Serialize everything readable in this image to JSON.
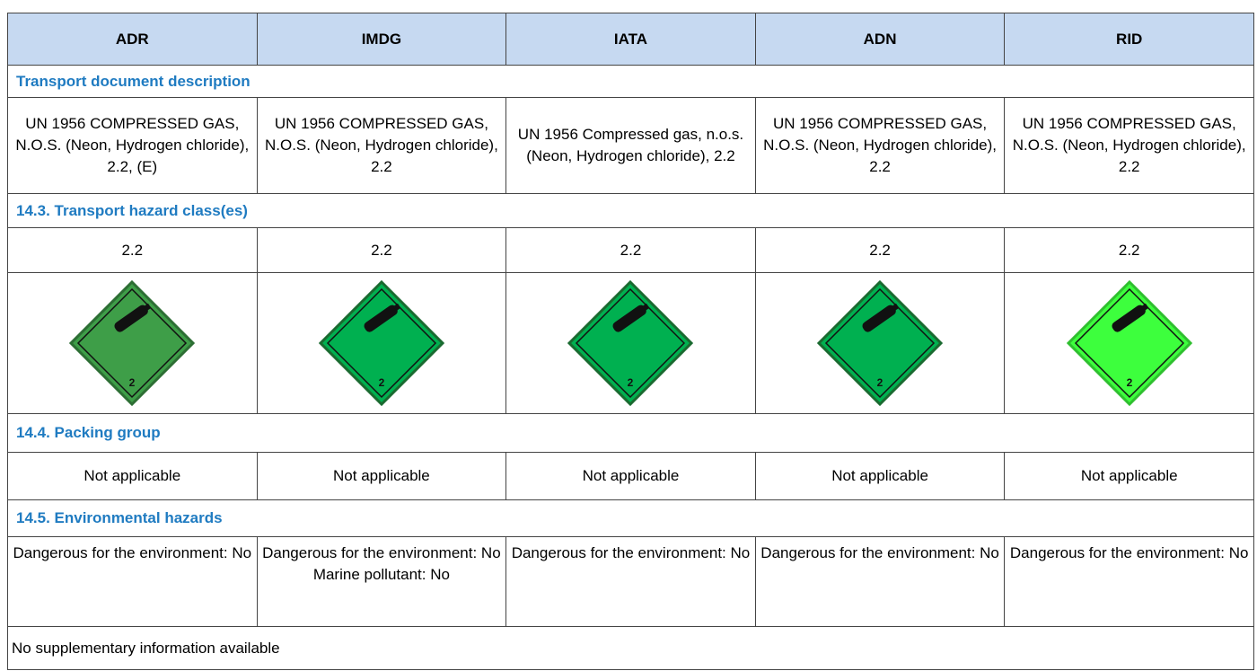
{
  "headers": [
    "ADR",
    "IMDG",
    "IATA",
    "ADN",
    "RID"
  ],
  "transport_document": {
    "title": "Transport document description",
    "cells": [
      "UN 1956 COMPRESSED GAS, N.O.S. (Neon, Hydrogen chloride), 2.2, (E)",
      "UN 1956 COMPRESSED GAS, N.O.S. (Neon, Hydrogen chloride), 2.2",
      "UN 1956 Compressed gas, n.o.s. (Neon, Hydrogen chloride), 2.2",
      "UN 1956 COMPRESSED GAS, N.O.S. (Neon, Hydrogen chloride), 2.2",
      "UN 1956 COMPRESSED GAS, N.O.S. (Neon, Hydrogen chloride), 2.2"
    ]
  },
  "hazard_class": {
    "title": "14.3. Transport hazard class(es)",
    "cells": [
      "2.2",
      "2.2",
      "2.2",
      "2.2",
      "2.2"
    ],
    "pictogram_labels": [
      "2",
      "2",
      "2",
      "2",
      "2"
    ]
  },
  "packing_group": {
    "title": "14.4. Packing group",
    "cells": [
      "Not applicable",
      "Not applicable",
      "Not applicable",
      "Not applicable",
      "Not applicable"
    ]
  },
  "environmental_hazards": {
    "title": "14.5. Environmental hazards",
    "cells": [
      [
        "Dangerous for the environment: No"
      ],
      [
        "Dangerous for the environment: No",
        "Marine pollutant: No"
      ],
      [
        "Dangerous for the environment: No"
      ],
      [
        "Dangerous for the environment: No"
      ],
      [
        "Dangerous for the environment: No"
      ]
    ]
  },
  "supplementary": "No supplementary information available"
}
